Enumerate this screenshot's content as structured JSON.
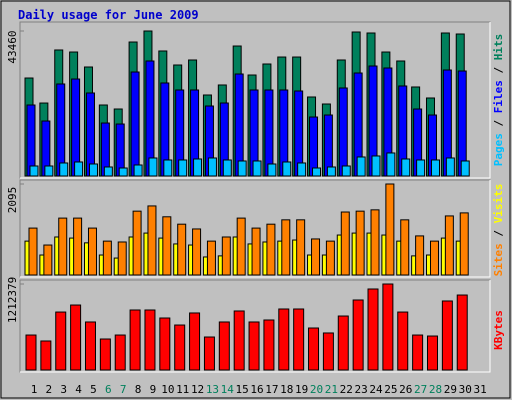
{
  "chart_data": [
    {
      "type": "bar",
      "title": "Daily usage for June 2009",
      "categories": [
        "1",
        "2",
        "3",
        "4",
        "5",
        "6",
        "7",
        "8",
        "9",
        "10",
        "11",
        "12",
        "13",
        "14",
        "15",
        "16",
        "17",
        "18",
        "19",
        "20",
        "21",
        "22",
        "23",
        "24",
        "25",
        "26",
        "27",
        "28",
        "29",
        "30",
        "31"
      ],
      "ylim": [
        0,
        43460
      ],
      "yticks": [
        43460
      ],
      "legend_separator": " / ",
      "series": [
        {
          "name": "Hits",
          "color": "#00805c",
          "values": [
            29370,
            21870,
            37770,
            37160,
            32670,
            21280,
            20080,
            40160,
            43460,
            37470,
            33270,
            34770,
            24280,
            27280,
            38960,
            30270,
            33570,
            35660,
            35660,
            23680,
            21580,
            34770,
            43160,
            42860,
            37160,
            34470,
            26680,
            23380,
            42860,
            42560,
            null
          ]
        },
        {
          "name": "Files",
          "color": "#0000ff",
          "values": [
            21280,
            16480,
            27580,
            29070,
            24880,
            15880,
            15580,
            31170,
            34470,
            27880,
            25780,
            25780,
            20980,
            21880,
            30570,
            25780,
            25780,
            25780,
            25480,
            17680,
            18280,
            26380,
            30870,
            32970,
            32370,
            26980,
            20080,
            18280,
            31770,
            31470,
            null
          ]
        },
        {
          "name": "Pages",
          "color": "#00c0ff",
          "values": [
            3000,
            3000,
            3900,
            4200,
            3600,
            2700,
            2400,
            3300,
            5400,
            4800,
            4800,
            5100,
            5400,
            4800,
            4500,
            4500,
            3600,
            4200,
            3900,
            2400,
            2700,
            3000,
            5700,
            6000,
            6900,
            5100,
            4800,
            4800,
            5400,
            4500,
            null
          ]
        }
      ]
    },
    {
      "type": "bar",
      "ylim": [
        0,
        2095
      ],
      "yticks": [
        2095
      ],
      "legend_separator": " / ",
      "series": [
        {
          "name": "Visits",
          "color": "#ffff00",
          "values": [
            780,
            460,
            875,
            850,
            740,
            460,
            390,
            875,
            965,
            850,
            715,
            690,
            415,
            440,
            875,
            715,
            760,
            780,
            805,
            460,
            460,
            920,
            965,
            965,
            920,
            780,
            440,
            460,
            850,
            780,
            null
          ]
        },
        {
          "name": "Sites",
          "color": "#ff8000",
          "values": [
            1080,
            690,
            1310,
            1310,
            1080,
            780,
            760,
            1470,
            1590,
            1340,
            1170,
            1060,
            780,
            875,
            1310,
            1080,
            1170,
            1270,
            1270,
            830,
            780,
            1450,
            1470,
            1500,
            2095,
            1270,
            900,
            780,
            1360,
            1430,
            null
          ]
        }
      ]
    },
    {
      "type": "bar",
      "ylim": [
        0,
        1212379
      ],
      "yticks": [
        1212379
      ],
      "category_colors": [
        "#000000",
        "#000000",
        "#000000",
        "#000000",
        "#000000",
        "#00805c",
        "#00805c",
        "#000000",
        "#000000",
        "#000000",
        "#000000",
        "#000000",
        "#00805c",
        "#00805c",
        "#000000",
        "#000000",
        "#000000",
        "#000000",
        "#000000",
        "#00805c",
        "#00805c",
        "#000000",
        "#000000",
        "#000000",
        "#000000",
        "#000000",
        "#00805c",
        "#00805c",
        "#000000",
        "#000000",
        "#000000"
      ],
      "series": [
        {
          "name": "KBytes",
          "color": "#ff0000",
          "values": [
            493000,
            409000,
            817000,
            916000,
            677000,
            437000,
            493000,
            846000,
            846000,
            733000,
            634000,
            804000,
            465000,
            677000,
            832000,
            677000,
            705000,
            860000,
            860000,
            592000,
            522000,
            761000,
            987000,
            1142000,
            1212379,
            817000,
            493000,
            479000,
            973000,
            1057000,
            null
          ]
        }
      ]
    }
  ]
}
